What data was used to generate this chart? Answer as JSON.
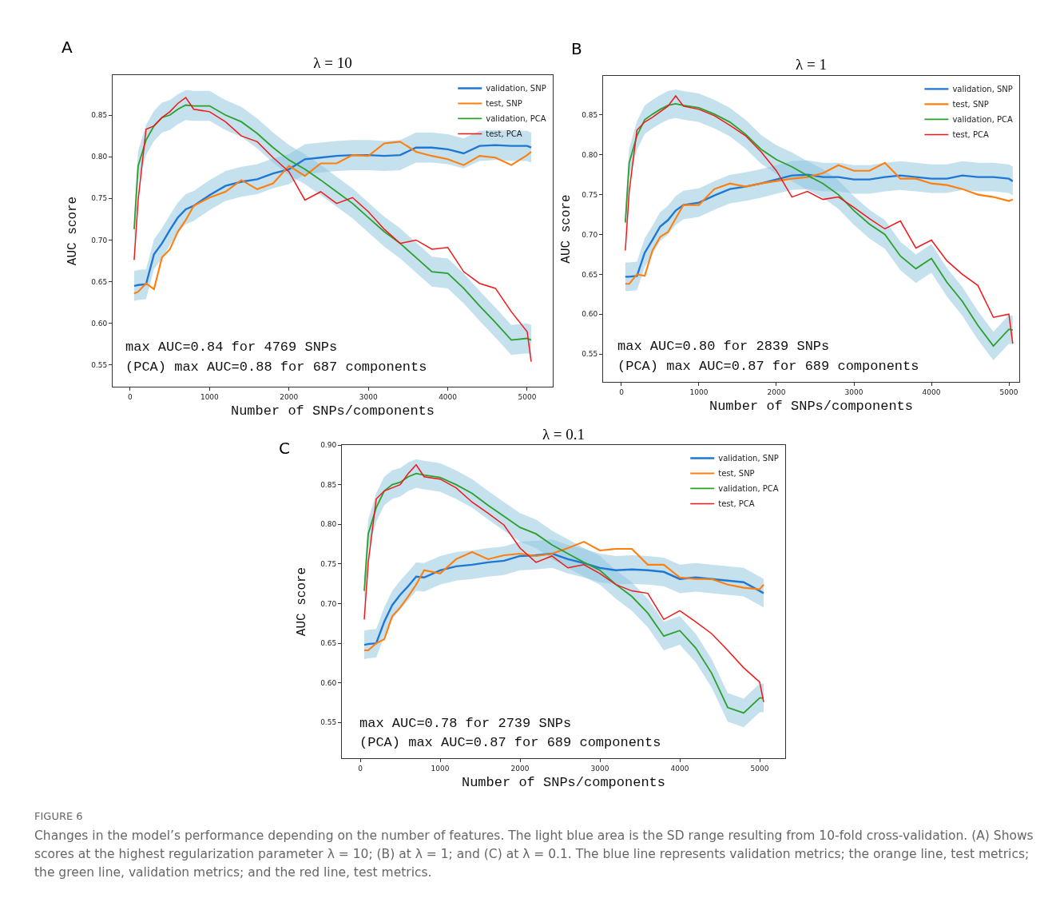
{
  "chart_data": [
    {
      "type": "line",
      "title": "λ = 10",
      "xlabel": "Number of SNPs/components",
      "ylabel": "AUC score",
      "legend": "top right",
      "annotations": [
        "A",
        "max AUC=0.84 for 4769 SNPs",
        "(PCA) max AUC=0.88 for 687 components"
      ],
      "xlim": [
        -221,
        5322
      ],
      "xticks": [
        0,
        1000,
        2000,
        3000,
        4000,
        5000
      ],
      "ylim": [
        0.524,
        0.898
      ],
      "yticks": [
        0.55,
        {
          "value": 0.6,
          "label": "0.60"
        },
        0.65,
        {
          "value": 0.7,
          "label": "0.70"
        },
        0.75,
        {
          "value": 0.8,
          "label": "0.80"
        },
        0.85
      ],
      "x": [
        50,
        100,
        200,
        300,
        400,
        500,
        600,
        700,
        800,
        1000,
        1200,
        1400,
        1600,
        1800,
        2000,
        2200,
        2400,
        2600,
        2800,
        3000,
        3200,
        3400,
        3600,
        3800,
        4000,
        4200,
        4400,
        4600,
        4800,
        5000,
        5050
      ],
      "series": [
        {
          "name": "validation, SNP",
          "color": "#1f77d4",
          "values": [
            0.645,
            0.646,
            0.647,
            0.683,
            0.696,
            0.712,
            0.727,
            0.737,
            0.741,
            0.754,
            0.765,
            0.77,
            0.773,
            0.78,
            0.785,
            0.797,
            0.799,
            0.801,
            0.802,
            0.802,
            0.801,
            0.802,
            0.811,
            0.811,
            0.809,
            0.804,
            0.813,
            0.814,
            0.813,
            0.813,
            0.811
          ],
          "lower": [
            0.627,
            0.628,
            0.629,
            0.665,
            0.678,
            0.694,
            0.709,
            0.719,
            0.723,
            0.736,
            0.747,
            0.752,
            0.755,
            0.762,
            0.767,
            0.779,
            0.781,
            0.783,
            0.784,
            0.784,
            0.783,
            0.784,
            0.793,
            0.793,
            0.791,
            0.786,
            0.795,
            0.796,
            0.795,
            0.795,
            0.793
          ],
          "upper": [
            0.663,
            0.664,
            0.665,
            0.701,
            0.714,
            0.73,
            0.745,
            0.755,
            0.759,
            0.772,
            0.783,
            0.788,
            0.791,
            0.798,
            0.803,
            0.815,
            0.817,
            0.819,
            0.82,
            0.82,
            0.819,
            0.82,
            0.829,
            0.829,
            0.827,
            0.822,
            0.831,
            0.832,
            0.831,
            0.831,
            0.829
          ]
        },
        {
          "name": "test, SNP",
          "color": "#ff7f0e",
          "values": [
            0.636,
            0.638,
            0.648,
            0.641,
            0.679,
            0.689,
            0.71,
            0.724,
            0.741,
            0.751,
            0.758,
            0.772,
            0.761,
            0.768,
            0.789,
            0.777,
            0.792,
            0.792,
            0.802,
            0.801,
            0.816,
            0.818,
            0.806,
            0.801,
            0.797,
            0.79,
            0.801,
            0.799,
            0.79,
            0.802,
            0.806
          ]
        },
        {
          "name": "validation, PCA",
          "color": "#2ca02c",
          "values": [
            0.713,
            0.789,
            0.82,
            0.837,
            0.847,
            0.85,
            0.857,
            0.862,
            0.861,
            0.861,
            0.85,
            0.842,
            0.828,
            0.811,
            0.796,
            0.785,
            0.772,
            0.758,
            0.744,
            0.727,
            0.71,
            0.696,
            0.679,
            0.662,
            0.66,
            0.642,
            0.621,
            0.601,
            0.58,
            0.582,
            0.58
          ],
          "lower": [
            0.695,
            0.771,
            0.802,
            0.819,
            0.829,
            0.832,
            0.839,
            0.844,
            0.843,
            0.843,
            0.832,
            0.824,
            0.81,
            0.793,
            0.778,
            0.767,
            0.754,
            0.74,
            0.726,
            0.709,
            0.692,
            0.678,
            0.661,
            0.644,
            0.642,
            0.624,
            0.603,
            0.583,
            0.562,
            0.564,
            0.562
          ],
          "upper": [
            0.731,
            0.807,
            0.838,
            0.855,
            0.865,
            0.868,
            0.875,
            0.88,
            0.879,
            0.879,
            0.868,
            0.86,
            0.846,
            0.829,
            0.814,
            0.803,
            0.79,
            0.776,
            0.762,
            0.745,
            0.728,
            0.714,
            0.697,
            0.68,
            0.678,
            0.66,
            0.639,
            0.619,
            0.598,
            0.6,
            0.598
          ]
        },
        {
          "name": "test, PCA",
          "color": "#f01818",
          "values": [
            0.676,
            0.748,
            0.833,
            0.837,
            0.847,
            0.854,
            0.864,
            0.871,
            0.857,
            0.854,
            0.842,
            0.825,
            0.818,
            0.799,
            0.782,
            0.748,
            0.758,
            0.744,
            0.751,
            0.734,
            0.713,
            0.696,
            0.7,
            0.689,
            0.691,
            0.662,
            0.648,
            0.642,
            0.614,
            0.59,
            0.554
          ]
        }
      ]
    },
    {
      "type": "line",
      "title": "λ = 1",
      "xlabel": "Number of SNPs/components",
      "ylabel": "AUC score",
      "legend": "top right",
      "annotations": [
        "B",
        "max AUC=0.80 for 2839 SNPs",
        "(PCA) max AUC=0.87 for 689 components"
      ],
      "xlim": [
        -237,
        5134
      ],
      "xticks": [
        0,
        1000,
        2000,
        3000,
        4000,
        5000
      ],
      "ylim": [
        0.515,
        0.899
      ],
      "yticks": [
        0.55,
        {
          "value": 0.6,
          "label": "0.60"
        },
        0.65,
        {
          "value": 0.7,
          "label": "0.70"
        },
        0.75,
        {
          "value": 0.8,
          "label": "0.80"
        },
        0.85
      ],
      "x": [
        50,
        100,
        200,
        300,
        400,
        500,
        600,
        700,
        800,
        1000,
        1200,
        1400,
        1600,
        1800,
        2000,
        2200,
        2400,
        2600,
        2800,
        3000,
        3200,
        3400,
        3600,
        3800,
        4000,
        4200,
        4400,
        4600,
        4800,
        5000,
        5050
      ],
      "series": [
        {
          "name": "validation, SNP",
          "color": "#1f77d4",
          "values": [
            0.647,
            0.647,
            0.648,
            0.677,
            0.693,
            0.71,
            0.718,
            0.73,
            0.737,
            0.74,
            0.749,
            0.757,
            0.76,
            0.764,
            0.769,
            0.774,
            0.775,
            0.772,
            0.772,
            0.769,
            0.769,
            0.772,
            0.774,
            0.772,
            0.77,
            0.77,
            0.774,
            0.772,
            0.772,
            0.77,
            0.767
          ],
          "lower": [
            0.629,
            0.629,
            0.63,
            0.659,
            0.675,
            0.692,
            0.7,
            0.712,
            0.719,
            0.722,
            0.731,
            0.739,
            0.742,
            0.746,
            0.751,
            0.756,
            0.757,
            0.754,
            0.754,
            0.751,
            0.751,
            0.754,
            0.756,
            0.754,
            0.752,
            0.752,
            0.756,
            0.754,
            0.754,
            0.752,
            0.749
          ],
          "upper": [
            0.665,
            0.665,
            0.666,
            0.695,
            0.711,
            0.728,
            0.736,
            0.748,
            0.755,
            0.758,
            0.767,
            0.775,
            0.778,
            0.782,
            0.787,
            0.792,
            0.793,
            0.79,
            0.79,
            0.787,
            0.787,
            0.79,
            0.792,
            0.79,
            0.788,
            0.788,
            0.792,
            0.79,
            0.79,
            0.788,
            0.785
          ]
        },
        {
          "name": "test, SNP",
          "color": "#ff7f0e",
          "values": [
            0.638,
            0.638,
            0.65,
            0.648,
            0.68,
            0.697,
            0.703,
            0.72,
            0.737,
            0.737,
            0.757,
            0.764,
            0.76,
            0.764,
            0.767,
            0.77,
            0.772,
            0.777,
            0.787,
            0.78,
            0.78,
            0.79,
            0.77,
            0.77,
            0.764,
            0.762,
            0.757,
            0.75,
            0.747,
            0.742,
            0.744
          ]
        },
        {
          "name": "validation, PCA",
          "color": "#2ca02c",
          "values": [
            0.715,
            0.79,
            0.824,
            0.844,
            0.851,
            0.857,
            0.862,
            0.864,
            0.862,
            0.859,
            0.851,
            0.841,
            0.826,
            0.807,
            0.794,
            0.785,
            0.774,
            0.764,
            0.75,
            0.73,
            0.713,
            0.7,
            0.673,
            0.657,
            0.67,
            0.64,
            0.616,
            0.586,
            0.56,
            0.581,
            0.58
          ],
          "lower": [
            0.697,
            0.772,
            0.806,
            0.826,
            0.833,
            0.839,
            0.844,
            0.846,
            0.844,
            0.841,
            0.833,
            0.823,
            0.808,
            0.789,
            0.776,
            0.767,
            0.756,
            0.746,
            0.732,
            0.712,
            0.695,
            0.682,
            0.655,
            0.639,
            0.652,
            0.622,
            0.598,
            0.568,
            0.542,
            0.563,
            0.562
          ],
          "upper": [
            0.733,
            0.808,
            0.842,
            0.862,
            0.869,
            0.875,
            0.88,
            0.882,
            0.88,
            0.877,
            0.869,
            0.859,
            0.844,
            0.825,
            0.812,
            0.803,
            0.792,
            0.782,
            0.768,
            0.748,
            0.731,
            0.718,
            0.691,
            0.675,
            0.688,
            0.658,
            0.634,
            0.604,
            0.578,
            0.599,
            0.598
          ]
        },
        {
          "name": "test, PCA",
          "color": "#f01818",
          "values": [
            0.68,
            0.754,
            0.831,
            0.841,
            0.847,
            0.854,
            0.861,
            0.874,
            0.861,
            0.857,
            0.849,
            0.837,
            0.824,
            0.804,
            0.78,
            0.747,
            0.754,
            0.744,
            0.747,
            0.734,
            0.72,
            0.707,
            0.717,
            0.683,
            0.693,
            0.667,
            0.65,
            0.636,
            0.596,
            0.6,
            0.563
          ]
        }
      ]
    },
    {
      "type": "line",
      "title": "λ = 0.1",
      "xlabel": "Number of SNPs/components",
      "ylabel": "AUC score",
      "legend": "top right",
      "annotations": [
        "C",
        "max AUC=0.78 for 2739 SNPs",
        "(PCA) max AUC=0.87 for 689 components",
        "FIGURE 6",
        "Changes in the model’s performance depending on the number of features. The light blue area is the SD range resulting from 10-fold cross-validation. (A) Shows scores at the highest regularization parameter λ = 10; (B) at λ = 1; and (C) at λ = 0.1. The blue line represents validation metrics; the orange line, test metrics; the green line, validation metrics; and the red line, test metrics."
      ],
      "xlim": [
        -230,
        5320
      ],
      "xticks": [
        0,
        1000,
        2000,
        3000,
        4000,
        5000
      ],
      "ylim": [
        0.505,
        0.9
      ],
      "yticks": [
        0.55,
        {
          "value": 0.6,
          "label": "0.60"
        },
        0.65,
        {
          "value": 0.7,
          "label": "0.70"
        },
        0.75,
        {
          "value": 0.8,
          "label": "0.80"
        },
        0.85,
        {
          "value": 0.9,
          "label": "0.90"
        }
      ],
      "x": [
        50,
        100,
        200,
        300,
        400,
        500,
        600,
        700,
        800,
        1000,
        1200,
        1400,
        1600,
        1800,
        2000,
        2200,
        2400,
        2600,
        2800,
        3000,
        3200,
        3400,
        3600,
        3800,
        4000,
        4200,
        4400,
        4600,
        4800,
        5000,
        5050
      ],
      "series": [
        {
          "name": "validation, SNP",
          "color": "#1f77d4",
          "values": [
            0.648,
            0.649,
            0.65,
            0.677,
            0.698,
            0.711,
            0.722,
            0.734,
            0.733,
            0.742,
            0.747,
            0.749,
            0.752,
            0.754,
            0.76,
            0.761,
            0.763,
            0.756,
            0.751,
            0.745,
            0.742,
            0.743,
            0.742,
            0.74,
            0.731,
            0.733,
            0.731,
            0.729,
            0.727,
            0.716,
            0.713
          ],
          "lower": [
            0.63,
            0.631,
            0.632,
            0.659,
            0.68,
            0.693,
            0.704,
            0.716,
            0.715,
            0.724,
            0.729,
            0.731,
            0.734,
            0.736,
            0.742,
            0.743,
            0.745,
            0.738,
            0.733,
            0.727,
            0.724,
            0.725,
            0.724,
            0.722,
            0.713,
            0.715,
            0.713,
            0.711,
            0.709,
            0.698,
            0.695
          ],
          "upper": [
            0.666,
            0.667,
            0.668,
            0.695,
            0.716,
            0.729,
            0.74,
            0.752,
            0.751,
            0.76,
            0.765,
            0.767,
            0.77,
            0.772,
            0.778,
            0.779,
            0.781,
            0.774,
            0.769,
            0.763,
            0.76,
            0.761,
            0.76,
            0.758,
            0.749,
            0.751,
            0.749,
            0.747,
            0.745,
            0.734,
            0.731
          ]
        },
        {
          "name": "test, SNP",
          "color": "#ff7f0e",
          "values": [
            0.641,
            0.641,
            0.65,
            0.655,
            0.684,
            0.695,
            0.709,
            0.724,
            0.742,
            0.738,
            0.756,
            0.765,
            0.756,
            0.761,
            0.763,
            0.76,
            0.763,
            0.77,
            0.778,
            0.767,
            0.769,
            0.769,
            0.749,
            0.749,
            0.733,
            0.731,
            0.731,
            0.724,
            0.72,
            0.718,
            0.724
          ]
        },
        {
          "name": "validation, PCA",
          "color": "#2ca02c",
          "values": [
            0.716,
            0.788,
            0.821,
            0.842,
            0.85,
            0.853,
            0.86,
            0.864,
            0.862,
            0.859,
            0.85,
            0.839,
            0.824,
            0.81,
            0.796,
            0.788,
            0.774,
            0.763,
            0.752,
            0.742,
            0.724,
            0.709,
            0.688,
            0.659,
            0.666,
            0.644,
            0.612,
            0.569,
            0.562,
            0.581,
            0.581
          ],
          "lower": [
            0.698,
            0.77,
            0.803,
            0.824,
            0.832,
            0.835,
            0.842,
            0.846,
            0.844,
            0.841,
            0.832,
            0.821,
            0.806,
            0.792,
            0.778,
            0.77,
            0.756,
            0.745,
            0.734,
            0.724,
            0.706,
            0.691,
            0.67,
            0.641,
            0.648,
            0.626,
            0.594,
            0.551,
            0.544,
            0.563,
            0.563
          ],
          "upper": [
            0.734,
            0.806,
            0.839,
            0.86,
            0.868,
            0.871,
            0.878,
            0.882,
            0.88,
            0.877,
            0.868,
            0.857,
            0.842,
            0.828,
            0.814,
            0.806,
            0.792,
            0.781,
            0.77,
            0.76,
            0.742,
            0.727,
            0.706,
            0.677,
            0.684,
            0.662,
            0.63,
            0.587,
            0.58,
            0.599,
            0.599
          ]
        },
        {
          "name": "test, PCA",
          "color": "#f01818",
          "values": [
            0.68,
            0.752,
            0.832,
            0.842,
            0.846,
            0.85,
            0.864,
            0.875,
            0.86,
            0.857,
            0.846,
            0.828,
            0.814,
            0.799,
            0.77,
            0.752,
            0.76,
            0.745,
            0.749,
            0.738,
            0.724,
            0.716,
            0.713,
            0.68,
            0.691,
            0.677,
            0.662,
            0.641,
            0.619,
            0.601,
            0.576
          ]
        }
      ]
    }
  ]
}
